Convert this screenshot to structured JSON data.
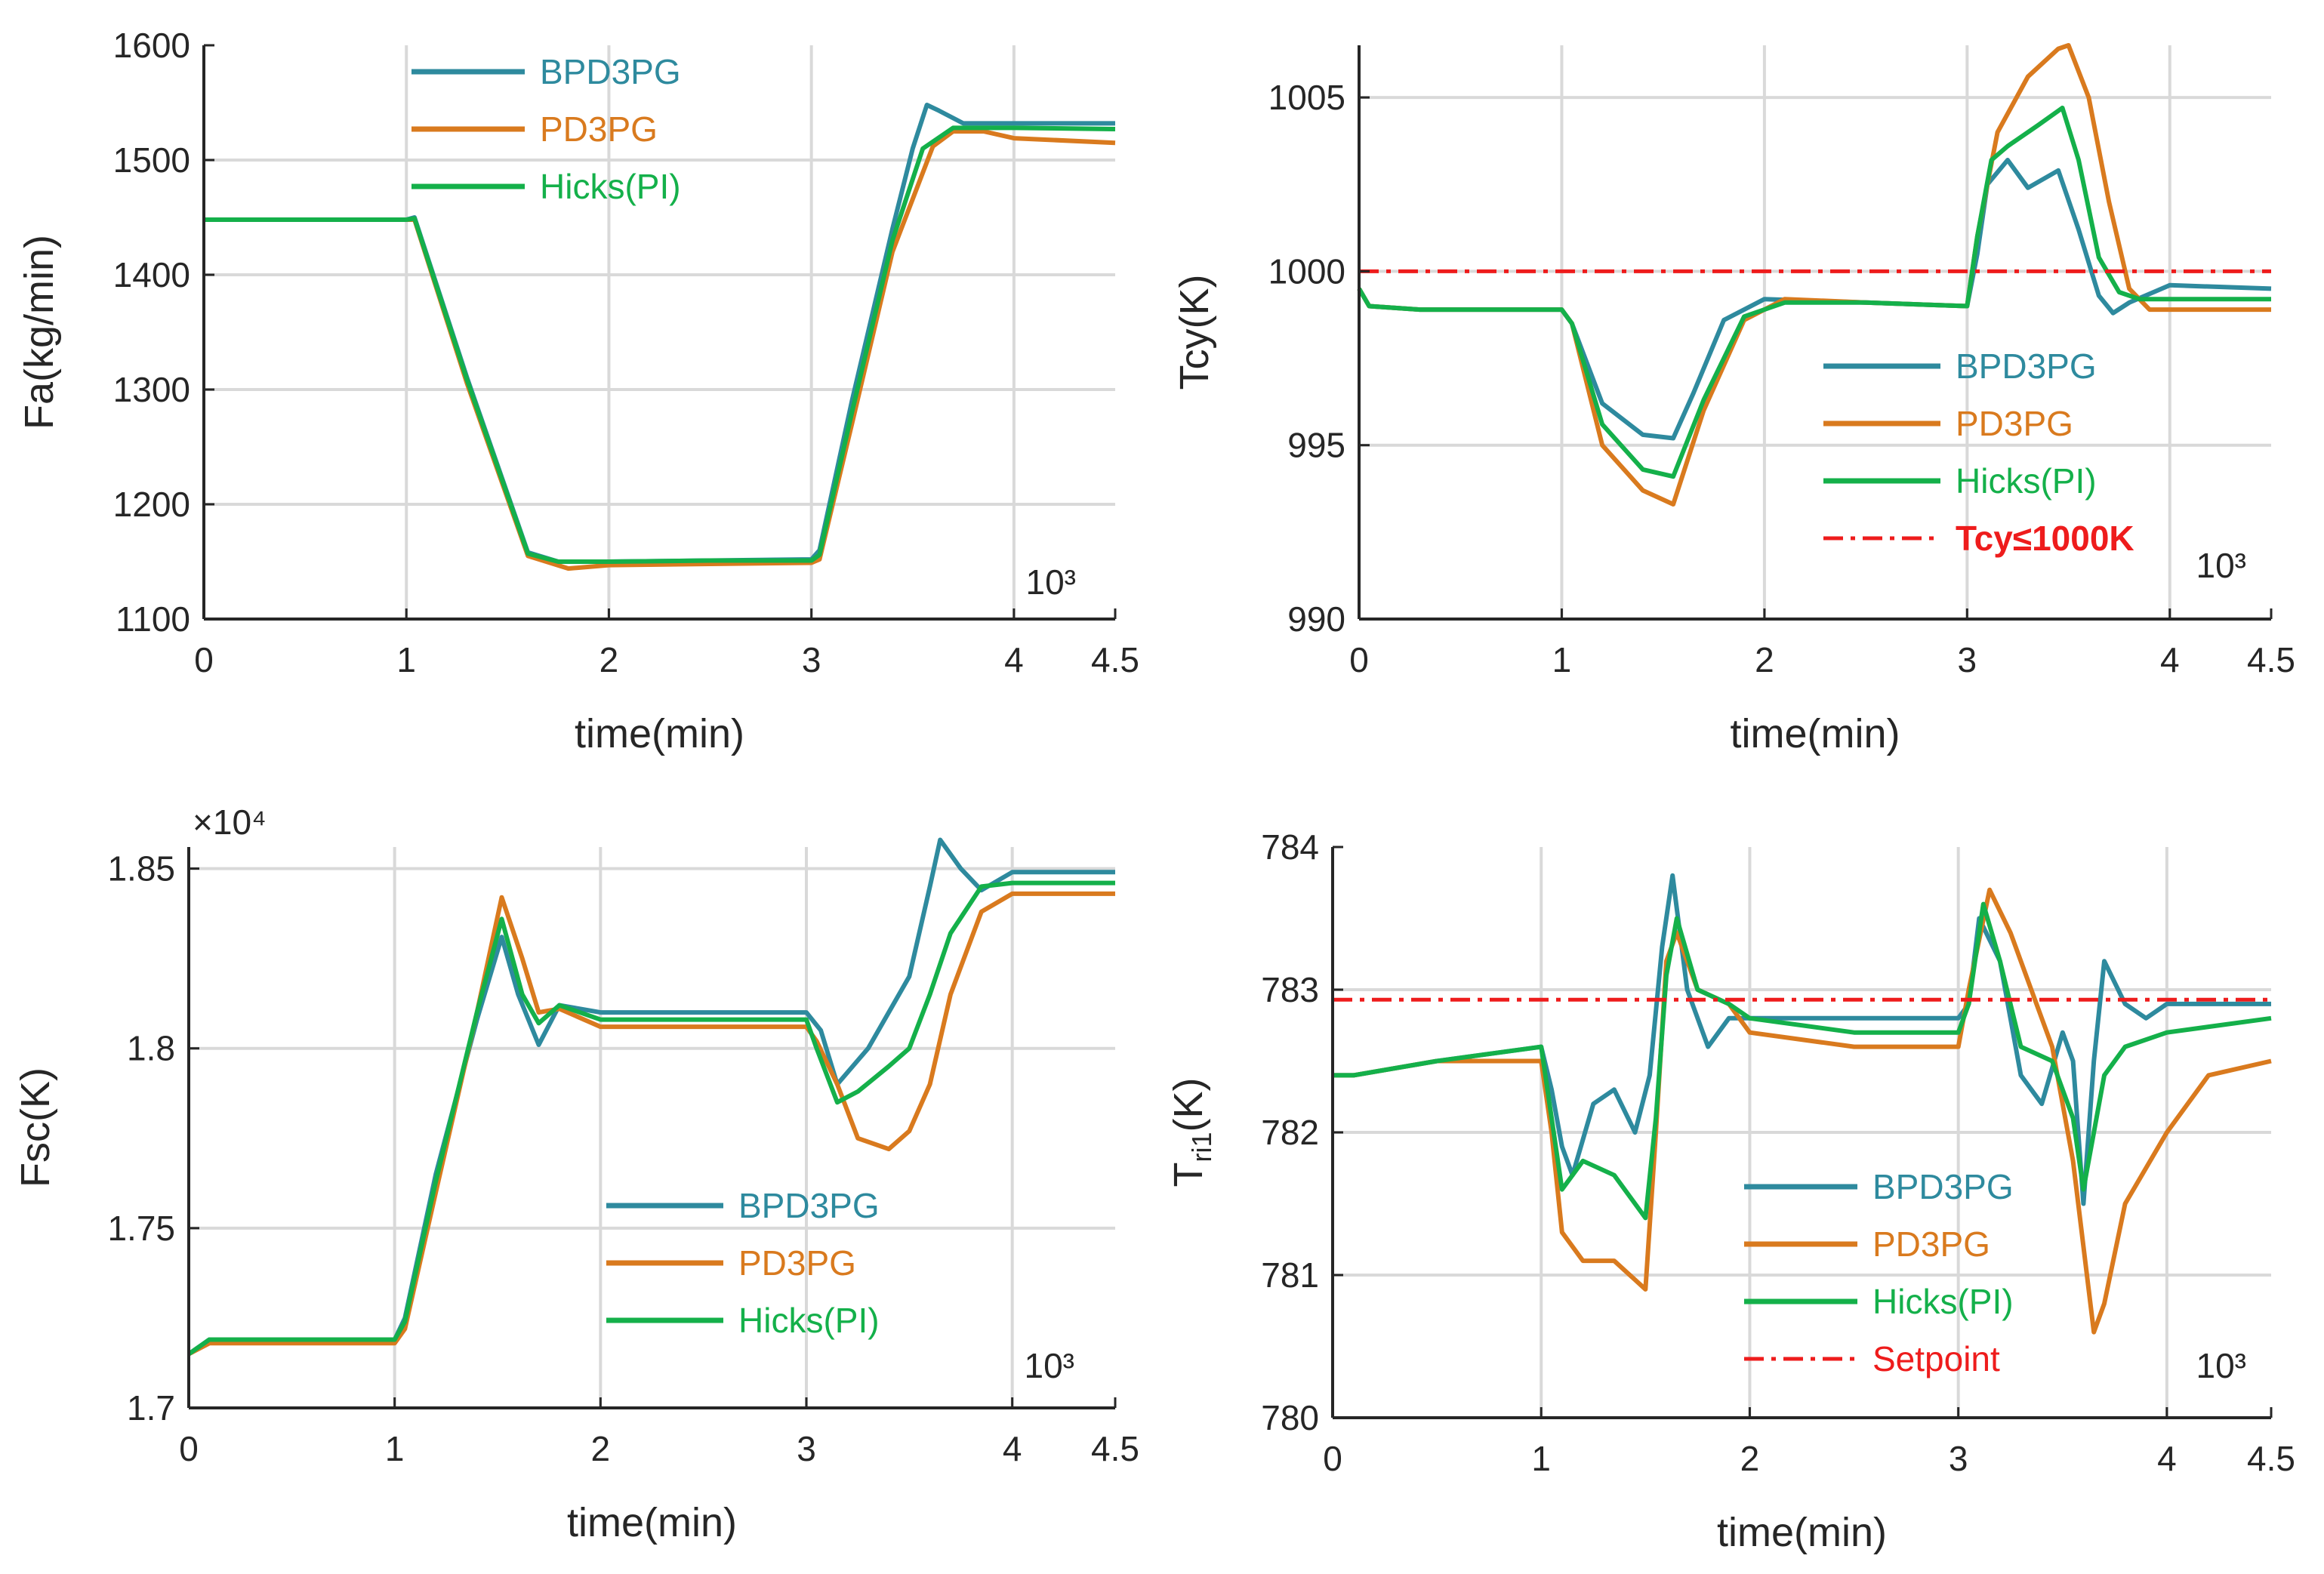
{
  "chart_data": [
    {
      "type": "line",
      "xlabel": "time(min)",
      "ylabel": "Fa(kg/min)",
      "exponent_label": "10³",
      "xlim": [
        0,
        4.5
      ],
      "ylim": [
        1100,
        1600
      ],
      "xticks": [
        0,
        1,
        2,
        3,
        4,
        4.5
      ],
      "xtick_labels": [
        "0",
        "1",
        "2",
        "3",
        "4",
        "4.5"
      ],
      "yticks": [
        1100,
        1200,
        1300,
        1400,
        1500,
        1600
      ],
      "ytick_labels": [
        "1100",
        "1200",
        "1300",
        "1400",
        "1500",
        "1600"
      ],
      "grid": true,
      "legend_position": "top-center",
      "series": [
        {
          "name": "BPD3PG",
          "color": "#2e8a9e",
          "x": [
            0,
            1,
            1.04,
            1.3,
            1.6,
            1.75,
            2,
            2.5,
            3,
            3.04,
            3.2,
            3.4,
            3.5,
            3.57,
            3.63,
            3.75,
            4,
            4.5
          ],
          "y": [
            1448,
            1448,
            1450,
            1310,
            1158,
            1150,
            1150,
            1151,
            1152,
            1160,
            1290,
            1440,
            1510,
            1548,
            1543,
            1532,
            1532,
            1532
          ]
        },
        {
          "name": "PD3PG",
          "color": "#d97a1e",
          "x": [
            0,
            1,
            1.04,
            1.3,
            1.6,
            1.8,
            2,
            2.5,
            3,
            3.04,
            3.2,
            3.4,
            3.6,
            3.7,
            3.85,
            4,
            4.5
          ],
          "y": [
            1448,
            1448,
            1448,
            1305,
            1155,
            1144,
            1147,
            1148,
            1149,
            1152,
            1270,
            1420,
            1512,
            1525,
            1525,
            1519,
            1515
          ]
        },
        {
          "name": "Hicks(PI)",
          "color": "#14b04a",
          "x": [
            0,
            1,
            1.04,
            1.3,
            1.6,
            1.75,
            2,
            2.5,
            3,
            3.04,
            3.2,
            3.4,
            3.55,
            3.7,
            4,
            4.5
          ],
          "y": [
            1448,
            1448,
            1449,
            1308,
            1157,
            1150,
            1150,
            1151,
            1151,
            1156,
            1280,
            1430,
            1510,
            1528,
            1528,
            1527
          ]
        }
      ]
    },
    {
      "type": "line",
      "xlabel": "time(min)",
      "ylabel": "Tcy(K)",
      "exponent_label": "10³",
      "xlim": [
        0,
        4.5
      ],
      "ylim": [
        990,
        1006.5
      ],
      "xticks": [
        0,
        1,
        2,
        3,
        4,
        4.5
      ],
      "xtick_labels": [
        "0",
        "1",
        "2",
        "3",
        "4",
        "4.5"
      ],
      "yticks": [
        990,
        995,
        1000,
        1005
      ],
      "ytick_labels": [
        "990",
        "995",
        "1000",
        "1005"
      ],
      "grid": true,
      "legend_position": "center-right",
      "series": [
        {
          "name": "BPD3PG",
          "color": "#2e8a9e",
          "x": [
            0,
            0.05,
            0.3,
            1,
            1.05,
            1.2,
            1.4,
            1.55,
            1.65,
            1.8,
            2,
            2.5,
            3,
            3.05,
            3.1,
            3.2,
            3.3,
            3.45,
            3.55,
            3.65,
            3.72,
            3.8,
            4,
            4.5
          ],
          "y": [
            999.5,
            999.0,
            998.9,
            998.9,
            998.5,
            996.2,
            995.3,
            995.2,
            996.5,
            998.6,
            999.2,
            999.1,
            999.0,
            1000.5,
            1002.5,
            1003.2,
            1002.4,
            1002.9,
            1001.2,
            999.3,
            998.8,
            999.1,
            999.6,
            999.5
          ]
        },
        {
          "name": "PD3PG",
          "color": "#d97a1e",
          "x": [
            0,
            0.05,
            0.3,
            1,
            1.05,
            1.2,
            1.4,
            1.55,
            1.7,
            1.9,
            2.1,
            2.5,
            3,
            3.05,
            3.15,
            3.3,
            3.45,
            3.5,
            3.6,
            3.7,
            3.8,
            3.9,
            4,
            4.5
          ],
          "y": [
            999.5,
            999.0,
            998.9,
            998.9,
            998.5,
            995.0,
            993.7,
            993.3,
            996.0,
            998.6,
            999.2,
            999.1,
            999.0,
            1001.0,
            1004.0,
            1005.6,
            1006.4,
            1006.5,
            1005.0,
            1002.0,
            999.5,
            998.9,
            998.9,
            998.9
          ]
        },
        {
          "name": "Hicks(PI)",
          "color": "#14b04a",
          "x": [
            0,
            0.05,
            0.3,
            1,
            1.05,
            1.2,
            1.4,
            1.55,
            1.7,
            1.9,
            2.1,
            2.5,
            3,
            3.05,
            3.12,
            3.2,
            3.35,
            3.47,
            3.55,
            3.65,
            3.75,
            3.85,
            4,
            4.5
          ],
          "y": [
            999.5,
            999.0,
            998.9,
            998.9,
            998.5,
            995.6,
            994.3,
            994.1,
            996.3,
            998.7,
            999.1,
            999.1,
            999.0,
            1001.0,
            1003.2,
            1003.6,
            1004.2,
            1004.7,
            1003.2,
            1000.4,
            999.4,
            999.2,
            999.2,
            999.2
          ]
        },
        {
          "name": "Tcy≤1000K",
          "color": "#ee1c1c",
          "dash": true,
          "x": [
            0,
            4.5
          ],
          "y": [
            1000,
            1000
          ]
        }
      ]
    },
    {
      "type": "line",
      "xlabel": "time(min)",
      "ylabel": "Fsc(K)",
      "multiplier_label": "×10⁴",
      "exponent_label": "10³",
      "xlim": [
        0,
        4.5
      ],
      "ylim": [
        1.7,
        1.856
      ],
      "xticks": [
        0,
        1,
        2,
        3,
        4,
        4.5
      ],
      "xtick_labels": [
        "0",
        "1",
        "2",
        "3",
        "4",
        "4.5"
      ],
      "yticks": [
        1.7,
        1.75,
        1.8,
        1.85
      ],
      "ytick_labels": [
        "1.7",
        "1.75",
        "1.8",
        "1.85"
      ],
      "grid": true,
      "legend_position": "bottom-center",
      "series": [
        {
          "name": "BPD3PG",
          "color": "#2e8a9e",
          "x": [
            0,
            0.1,
            0.3,
            1,
            1.05,
            1.2,
            1.4,
            1.52,
            1.6,
            1.7,
            1.8,
            2,
            2.5,
            3,
            3.07,
            3.15,
            3.3,
            3.5,
            3.6,
            3.65,
            3.75,
            3.85,
            4,
            4.5
          ],
          "y": [
            1.715,
            1.719,
            1.719,
            1.719,
            1.725,
            1.765,
            1.808,
            1.831,
            1.815,
            1.801,
            1.812,
            1.81,
            1.81,
            1.81,
            1.805,
            1.79,
            1.8,
            1.82,
            1.845,
            1.858,
            1.85,
            1.844,
            1.849,
            1.849
          ]
        },
        {
          "name": "PD3PG",
          "color": "#d97a1e",
          "x": [
            0,
            0.1,
            0.3,
            1,
            1.05,
            1.2,
            1.4,
            1.52,
            1.62,
            1.7,
            1.8,
            2,
            2.5,
            3,
            3.05,
            3.15,
            3.25,
            3.4,
            3.5,
            3.6,
            3.7,
            3.85,
            4,
            4.5
          ],
          "y": [
            1.715,
            1.718,
            1.718,
            1.718,
            1.722,
            1.76,
            1.81,
            1.842,
            1.825,
            1.81,
            1.811,
            1.806,
            1.806,
            1.806,
            1.802,
            1.79,
            1.775,
            1.772,
            1.777,
            1.79,
            1.815,
            1.838,
            1.843,
            1.843
          ]
        },
        {
          "name": "Hicks(PI)",
          "color": "#14b04a",
          "x": [
            0,
            0.1,
            0.3,
            1,
            1.05,
            1.2,
            1.4,
            1.52,
            1.62,
            1.7,
            1.8,
            2,
            2.5,
            3,
            3.05,
            3.15,
            3.25,
            3.4,
            3.5,
            3.6,
            3.7,
            3.85,
            4,
            4.5
          ],
          "y": [
            1.715,
            1.719,
            1.719,
            1.719,
            1.724,
            1.763,
            1.81,
            1.836,
            1.815,
            1.807,
            1.812,
            1.808,
            1.808,
            1.808,
            1.8,
            1.785,
            1.788,
            1.795,
            1.8,
            1.815,
            1.832,
            1.845,
            1.846,
            1.846
          ]
        }
      ]
    },
    {
      "type": "line",
      "xlabel": "time(min)",
      "ylabel": "Tri1(K)",
      "exponent_label": "10³",
      "xlim": [
        0,
        4.5
      ],
      "ylim": [
        780,
        784
      ],
      "xticks": [
        0,
        1,
        2,
        3,
        4,
        4.5
      ],
      "xtick_labels": [
        "0",
        "1",
        "2",
        "3",
        "4",
        "4.5"
      ],
      "yticks": [
        780,
        781,
        782,
        783,
        784
      ],
      "ytick_labels": [
        "780",
        "781",
        "782",
        "783",
        "784"
      ],
      "grid": true,
      "legend_position": "bottom-center",
      "series": [
        {
          "name": "BPD3PG",
          "color": "#2e8a9e",
          "x": [
            0,
            0.1,
            0.5,
            1,
            1.05,
            1.1,
            1.15,
            1.25,
            1.35,
            1.45,
            1.52,
            1.58,
            1.63,
            1.7,
            1.8,
            1.9,
            2,
            2.5,
            3,
            3.05,
            3.1,
            3.2,
            3.3,
            3.4,
            3.5,
            3.55,
            3.6,
            3.65,
            3.7,
            3.8,
            3.9,
            4,
            4.3,
            4.5
          ],
          "y": [
            782.4,
            782.4,
            782.5,
            782.6,
            782.3,
            781.9,
            781.7,
            782.2,
            782.3,
            782.0,
            782.4,
            783.3,
            783.8,
            783.0,
            782.6,
            782.8,
            782.8,
            782.8,
            782.8,
            782.9,
            783.5,
            783.2,
            782.4,
            782.2,
            782.7,
            782.5,
            781.5,
            782.5,
            783.2,
            782.9,
            782.8,
            782.9,
            782.9,
            782.9
          ]
        },
        {
          "name": "PD3PG",
          "color": "#d97a1e",
          "x": [
            0,
            0.1,
            0.5,
            1,
            1.05,
            1.1,
            1.2,
            1.35,
            1.5,
            1.55,
            1.6,
            1.65,
            1.75,
            1.9,
            2,
            2.5,
            3,
            3.05,
            3.15,
            3.25,
            3.35,
            3.45,
            3.55,
            3.65,
            3.7,
            3.8,
            4,
            4.2,
            4.5
          ],
          "y": [
            782.4,
            782.4,
            782.5,
            782.5,
            782.0,
            781.3,
            781.1,
            781.1,
            780.9,
            782.0,
            783.2,
            783.4,
            783.0,
            782.9,
            782.7,
            782.6,
            782.6,
            783.0,
            783.7,
            783.4,
            783.0,
            782.6,
            781.8,
            780.6,
            780.8,
            781.5,
            782.0,
            782.4,
            782.5
          ]
        },
        {
          "name": "Hicks(PI)",
          "color": "#14b04a",
          "x": [
            0,
            0.1,
            0.5,
            1,
            1.05,
            1.1,
            1.2,
            1.35,
            1.5,
            1.55,
            1.6,
            1.65,
            1.75,
            1.9,
            2,
            2.5,
            3,
            3.05,
            3.12,
            3.2,
            3.3,
            3.45,
            3.55,
            3.6,
            3.7,
            3.8,
            4,
            4.5
          ],
          "y": [
            782.4,
            782.4,
            782.5,
            782.6,
            782.1,
            781.6,
            781.8,
            781.7,
            781.4,
            782.1,
            783.1,
            783.5,
            783.0,
            782.9,
            782.8,
            782.7,
            782.7,
            782.9,
            783.6,
            783.2,
            782.6,
            782.5,
            782.1,
            781.6,
            782.4,
            782.6,
            782.7,
            782.8
          ]
        },
        {
          "name": "Setpoint",
          "color": "#ee1c1c",
          "dash": true,
          "x": [
            0,
            4.5
          ],
          "y": [
            782.93,
            782.93
          ]
        }
      ]
    }
  ]
}
